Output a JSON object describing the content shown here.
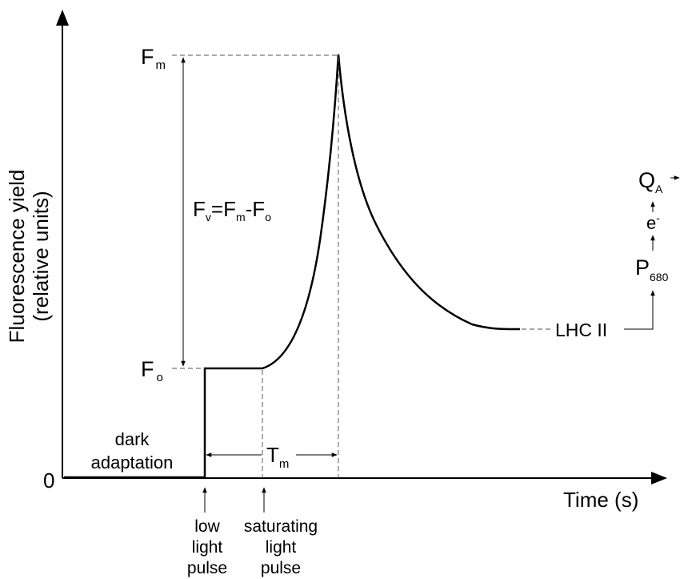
{
  "diagram": {
    "y_axis_label_line1": "Fluorescence yield",
    "y_axis_label_line2": "(relative units)",
    "x_axis_label": "Time (s)",
    "origin_label": "0",
    "fm_main": "F",
    "fm_sub": "m",
    "fo_main": "F",
    "fo_sub": "o",
    "fv_eq": {
      "p1": "F",
      "s1": "v",
      "p2": "=F",
      "s2": "m",
      "p3": "-F",
      "s3": "o"
    },
    "tm_main": "T",
    "tm_sub": "m",
    "dark_line1": "dark",
    "dark_line2": "adaptation",
    "low_pulse": [
      "low",
      "light",
      "pulse"
    ],
    "sat_pulse": [
      "saturating",
      "light",
      "pulse"
    ],
    "lhc_label": "LHC II",
    "p680_main": "P",
    "p680_sub": "680",
    "e_main": "e",
    "e_sup": "-",
    "qa_main": "Q",
    "qa_sub": "A"
  },
  "colors": {
    "line": "#000000",
    "dashed": "#555555"
  }
}
